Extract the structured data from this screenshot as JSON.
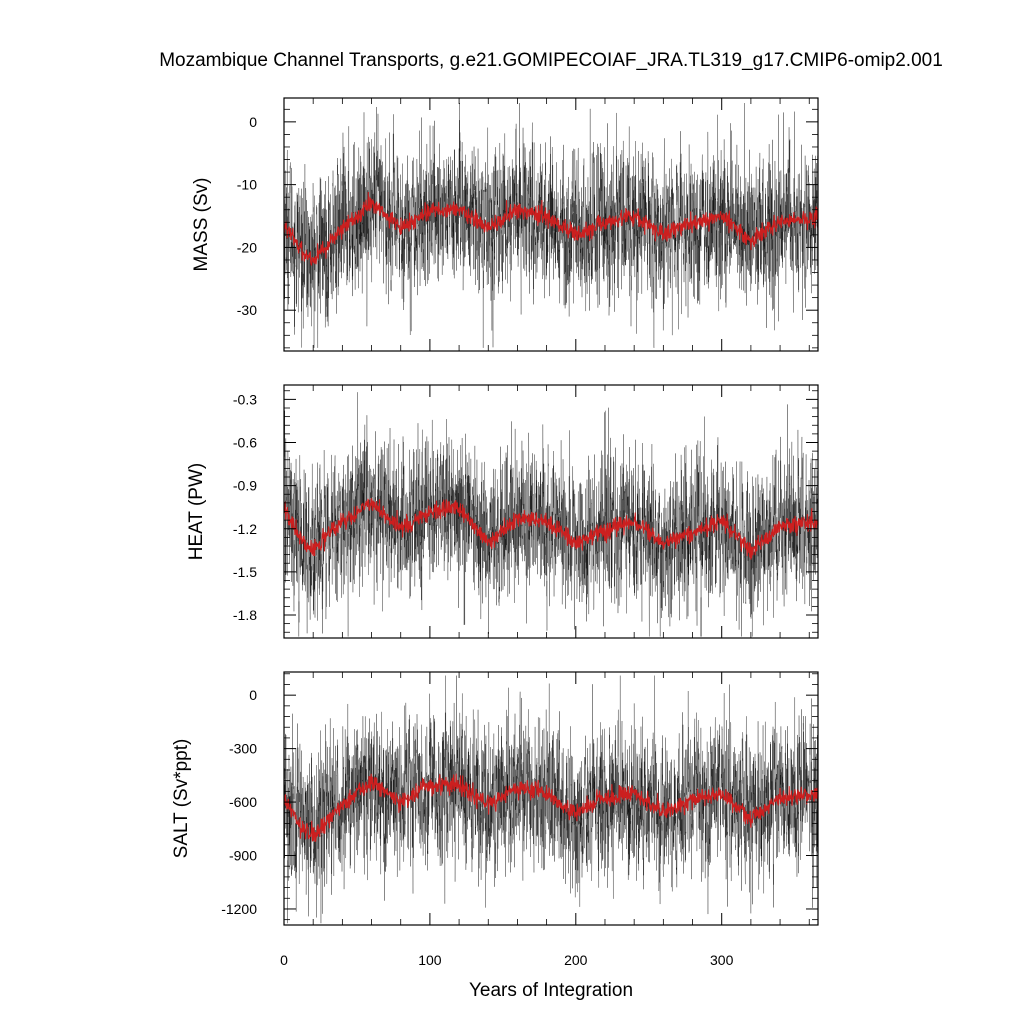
{
  "title": "Mozambique Channel Transports, g.e21.GOMIPECOIAF_JRA.TL319_g17.CMIP6-omip2.001",
  "colors": {
    "raw": "#000000",
    "smooth": "#cc1f1f",
    "axis": "#000000",
    "background": "#ffffff"
  },
  "chart_data": {
    "type": "line",
    "title": "Mozambique Channel Transports, g.e21.GOMIPECOIAF_JRA.TL319_g17.CMIP6-omip2.001",
    "xlabel": "Years of Integration",
    "xlim": [
      0,
      366
    ],
    "x_ticks": [
      0,
      100,
      200,
      300
    ],
    "x_tick_labels": [
      "0",
      "100",
      "200",
      "300"
    ],
    "grid": false,
    "legend": "none",
    "panels": [
      {
        "id": "mass",
        "ylabel": "MASS (Sv)",
        "ylim": [
          -36.5,
          3.8
        ],
        "y_ticks": [
          0,
          -10,
          -20,
          -30
        ],
        "y_tick_labels": [
          "0",
          "-10",
          "-20",
          "-30"
        ],
        "series": [
          {
            "style": "raw monthly",
            "approx_mean": -16.0,
            "approx_range": [
              -36,
              3
            ]
          },
          {
            "style": "smoothed (red)",
            "x": [
              0,
              10,
              20,
              40,
              60,
              80,
              100,
              120,
              140,
              160,
              180,
              200,
              220,
              240,
              260,
              280,
              300,
              320,
              340,
              366
            ],
            "values": [
              -16,
              -20,
              -22,
              -17,
              -13,
              -17,
              -14,
              -14,
              -17,
              -14,
              -15,
              -18,
              -16,
              -15,
              -18,
              -16,
              -15,
              -19,
              -16,
              -15
            ]
          }
        ]
      },
      {
        "id": "heat",
        "ylabel": "HEAT (PW)",
        "ylim": [
          -1.96,
          -0.2
        ],
        "y_ticks": [
          -0.3,
          -0.6,
          -0.9,
          -1.2,
          -1.5,
          -1.8
        ],
        "y_tick_labels": [
          "-0.3",
          "-0.6",
          "-0.9",
          "-1.2",
          "-1.5",
          "-1.8"
        ],
        "series": [
          {
            "style": "raw monthly",
            "approx_mean": -1.17,
            "approx_range": [
              -1.95,
              -0.25
            ]
          },
          {
            "style": "smoothed (red)",
            "x": [
              0,
              10,
              20,
              40,
              60,
              80,
              100,
              120,
              140,
              160,
              180,
              200,
              220,
              240,
              260,
              280,
              300,
              320,
              340,
              366
            ],
            "values": [
              -1.05,
              -1.25,
              -1.35,
              -1.15,
              -1.02,
              -1.2,
              -1.08,
              -1.05,
              -1.3,
              -1.12,
              -1.15,
              -1.3,
              -1.2,
              -1.15,
              -1.3,
              -1.22,
              -1.15,
              -1.35,
              -1.18,
              -1.15
            ]
          }
        ]
      },
      {
        "id": "salt",
        "ylabel": "SALT (Sv*ppt)",
        "ylim": [
          -1290,
          130
        ],
        "y_ticks": [
          0,
          -300,
          -600,
          -900,
          -1200
        ],
        "y_tick_labels": [
          "0",
          "-300",
          "-600",
          "-900",
          "-1200"
        ],
        "series": [
          {
            "style": "raw monthly",
            "approx_mean": -580,
            "approx_range": [
              -1280,
              110
            ]
          },
          {
            "style": "smoothed (red)",
            "x": [
              0,
              10,
              20,
              40,
              60,
              80,
              100,
              120,
              140,
              160,
              180,
              200,
              220,
              240,
              260,
              280,
              300,
              320,
              340,
              366
            ],
            "values": [
              -580,
              -720,
              -780,
              -620,
              -480,
              -600,
              -500,
              -500,
              -620,
              -520,
              -550,
              -660,
              -580,
              -550,
              -660,
              -590,
              -550,
              -690,
              -580,
              -560
            ]
          }
        ]
      }
    ]
  }
}
